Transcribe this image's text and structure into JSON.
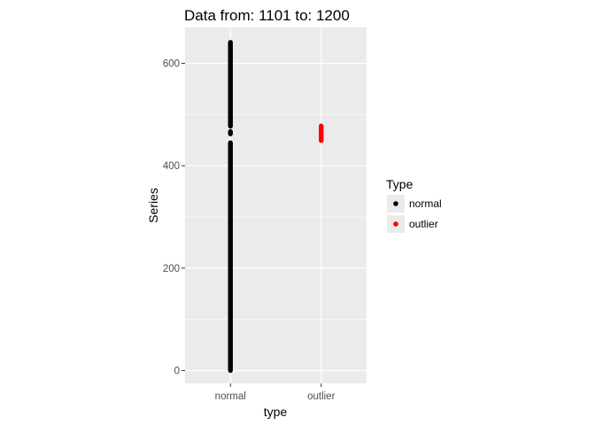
{
  "chart_data": {
    "type": "scatter",
    "title": "Data from:  1101  to:  1200",
    "xlabel": "type",
    "ylabel": "Series",
    "categories": [
      "normal",
      "outlier"
    ],
    "yticks": [
      0,
      200,
      400,
      600
    ],
    "ylim": [
      -25,
      670
    ],
    "grid": true,
    "legend": {
      "title": "Type",
      "position": "right",
      "entries": [
        {
          "label": "normal",
          "color": "#000000"
        },
        {
          "label": "outlier",
          "color": "#ff0000"
        }
      ]
    },
    "series": [
      {
        "name": "normal",
        "category": "normal",
        "color": "#000000",
        "ranges": [
          [
            0,
            445
          ],
          [
            462,
            467
          ],
          [
            477,
            641
          ]
        ]
      },
      {
        "name": "outlier",
        "category": "outlier",
        "color": "#ff0000",
        "ranges": [
          [
            449,
            478
          ]
        ]
      }
    ]
  },
  "colors": {
    "panel_background": "#ebebeb",
    "grid_major": "#ffffff",
    "normal": "#000000",
    "outlier": "#ff0000"
  }
}
